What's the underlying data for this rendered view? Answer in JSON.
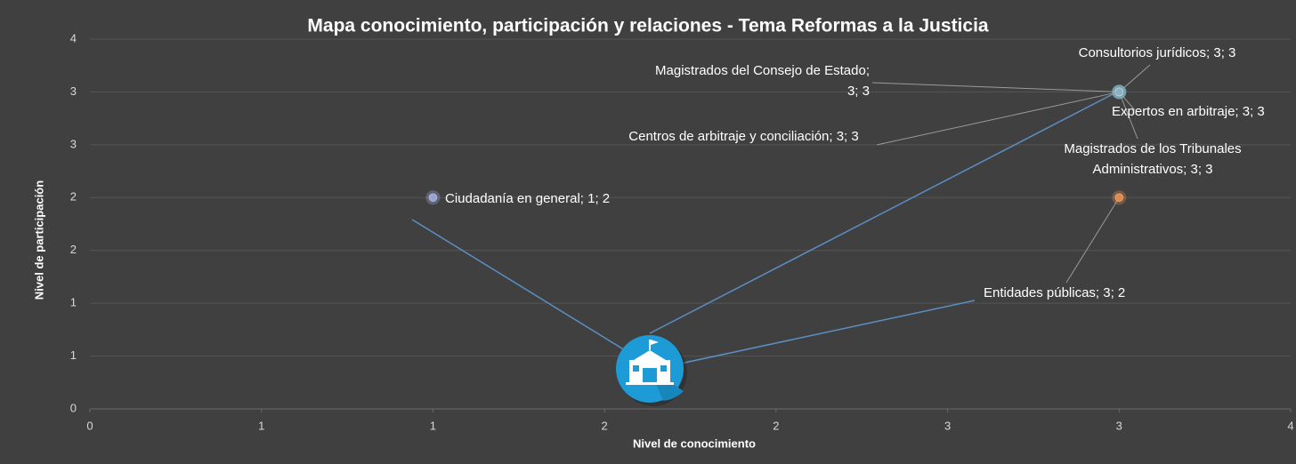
{
  "chart_data": {
    "type": "scatter",
    "title": "Mapa conocimiento, participación y relaciones - Tema Reformas a la Justicia",
    "x_label": "Nivel de  conocimiento",
    "y_label": "Nivel de participación",
    "xlim": [
      0,
      3.5
    ],
    "ylim": [
      0,
      3.5
    ],
    "xticks": [
      0,
      {
        "value": 0.5,
        "label": "1"
      },
      1,
      {
        "value": 1.5,
        "label": "2"
      },
      2,
      {
        "value": 2.5,
        "label": "3"
      },
      3,
      {
        "value": 3.5,
        "label": "4"
      }
    ],
    "yticks": [
      0,
      {
        "value": 0.5,
        "label": "1"
      },
      1,
      {
        "value": 1.5,
        "label": "2"
      },
      2,
      {
        "value": 2.5,
        "label": "3"
      },
      3,
      {
        "value": 3.5,
        "label": "4"
      }
    ],
    "grid": true,
    "points": [
      {
        "x": 1,
        "y": 2,
        "color": "#9aa3d6",
        "value_label": "Ciudadanía en general; 1; 2"
      },
      {
        "x": 3,
        "y": 3,
        "color": "#7fb8a0",
        "value_label": "Consultorios jurídicos; 3; 3"
      },
      {
        "x": 3,
        "y": 3,
        "color": "#6fa8c8",
        "value_label": "Magistrados del Consejo de Estado; 3; 3"
      },
      {
        "x": 3,
        "y": 3,
        "color": "#8fbf80",
        "value_label": "Centros de arbitraje y conciliación; 3; 3"
      },
      {
        "x": 3,
        "y": 3,
        "color": "#5f9fd0",
        "value_label": "Expertos en arbitraje; 3; 3"
      },
      {
        "x": 3,
        "y": 3,
        "color": "#8fb0c0",
        "value_label": "Magistrados de los Tribunales Administrativos; 3; 3"
      },
      {
        "x": 3,
        "y": 2,
        "color": "#e08a4a",
        "value_label": "Entidades públicas; 3; 2"
      }
    ]
  }
}
